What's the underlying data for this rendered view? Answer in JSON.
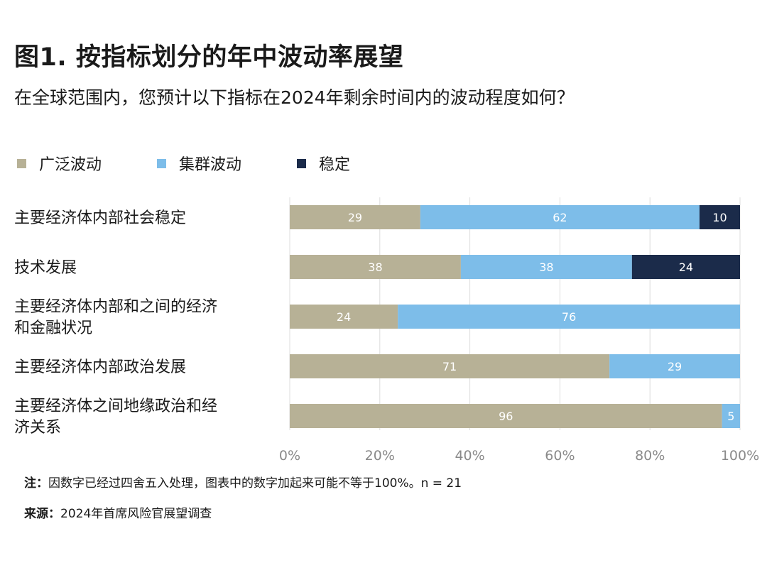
{
  "header": {
    "title": "图1. 按指标划分的年中波动率展望",
    "subtitle": "在全球范围内，您预计以下指标在2024年剩余时间内的波动程度如何？"
  },
  "colors": {
    "wide": "#b7b196",
    "cluster": "#7dbde9",
    "stable": "#1b2b4a",
    "grid": "#dcdcdc"
  },
  "footer": {
    "note_label": "注：",
    "note_text": "因数字已经过四舍五入处理，图表中的数字加起来可能不等于100%。n = 21",
    "source_label": "来源：",
    "source_text": "2024年首席风险官展望调查"
  },
  "chart_data": {
    "type": "bar",
    "orientation": "horizontal",
    "stacked": true,
    "categories": [
      [
        "主要经济体内部社会稳定"
      ],
      [
        "技术发展"
      ],
      [
        "主要经济体内部和之间的经济",
        "和金融状况"
      ],
      [
        "主要经济体内部政治发展"
      ],
      [
        "主要经济体之间地缘政治和经",
        "济关系"
      ]
    ],
    "series": [
      {
        "name": "广泛波动",
        "color": "#b7b196",
        "values": [
          29,
          38,
          24,
          71,
          96
        ]
      },
      {
        "name": "集群波动",
        "color": "#7dbde9",
        "values": [
          62,
          38,
          76,
          29,
          5
        ]
      },
      {
        "name": "稳定",
        "color": "#1b2b4a",
        "values": [
          10,
          24,
          0,
          0,
          0
        ]
      }
    ],
    "xlim": [
      0,
      100
    ],
    "xticks": [
      "0%",
      "20%",
      "40%",
      "60%",
      "80%",
      "100%"
    ],
    "grid": true,
    "legend": "top-left"
  }
}
